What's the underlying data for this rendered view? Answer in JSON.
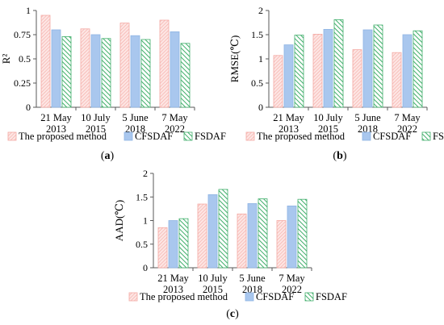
{
  "chart_data": [
    {
      "id": "a",
      "panel_label": "(a)",
      "type": "bar",
      "ylabel": "R²",
      "ylim": [
        0,
        1
      ],
      "yticks": [
        0,
        0.25,
        0.5,
        0.75,
        1
      ],
      "ytick_labels": [
        "0",
        "0.25",
        "0.5",
        "0.75",
        "1"
      ],
      "categories": [
        [
          "21 May",
          "2013"
        ],
        [
          "10 July",
          "2015"
        ],
        [
          "5 June",
          "2018"
        ],
        [
          "7 May",
          "2022"
        ]
      ],
      "series": [
        {
          "name": "The proposed method",
          "values": [
            0.95,
            0.81,
            0.87,
            0.9
          ]
        },
        {
          "name": "CFSDAF",
          "values": [
            0.8,
            0.75,
            0.74,
            0.78
          ]
        },
        {
          "name": "FSDAF",
          "values": [
            0.73,
            0.71,
            0.7,
            0.66
          ]
        }
      ],
      "legend_position": "bottom"
    },
    {
      "id": "b",
      "panel_label": "(b)",
      "type": "bar",
      "ylabel": "RMSE(℃)",
      "ylim": [
        0,
        2
      ],
      "yticks": [
        0,
        0.5,
        1,
        1.5,
        2
      ],
      "ytick_labels": [
        "0",
        "0.5",
        "1",
        "1.5",
        "2"
      ],
      "categories": [
        [
          "21 May",
          "2013"
        ],
        [
          "10 July",
          "2015"
        ],
        [
          "5 June",
          "2018"
        ],
        [
          "7 May",
          "2022"
        ]
      ],
      "series": [
        {
          "name": "The proposed method",
          "values": [
            1.07,
            1.51,
            1.19,
            1.13
          ]
        },
        {
          "name": "CFSDAF",
          "values": [
            1.29,
            1.61,
            1.6,
            1.5
          ]
        },
        {
          "name": "FSDAF",
          "values": [
            1.49,
            1.81,
            1.7,
            1.58
          ]
        }
      ],
      "legend_position": "bottom"
    },
    {
      "id": "c",
      "panel_label": "(c)",
      "type": "bar",
      "ylabel": "AAD(℃)",
      "ylim": [
        0,
        2
      ],
      "yticks": [
        0,
        0.5,
        1,
        1.5,
        2
      ],
      "ytick_labels": [
        "0",
        "0.5",
        "1",
        "1.5",
        "2"
      ],
      "categories": [
        [
          "21 May",
          "2013"
        ],
        [
          "10 July",
          "2015"
        ],
        [
          "5 June",
          "2018"
        ],
        [
          "7 May",
          "2022"
        ]
      ],
      "series": [
        {
          "name": "The proposed method",
          "values": [
            0.85,
            1.35,
            1.14,
            1.0
          ]
        },
        {
          "name": "CFSDAF",
          "values": [
            1.0,
            1.55,
            1.36,
            1.31
          ]
        },
        {
          "name": "FSDAF",
          "values": [
            1.04,
            1.66,
            1.46,
            1.45
          ]
        }
      ],
      "legend_position": "bottom"
    }
  ],
  "colors": {
    "series": [
      "#f4a9a3",
      "#8fb4e3",
      "#3fae6a"
    ],
    "series_fill": [
      "#fde6e4",
      "#a9c7ee",
      "#ffffff"
    ],
    "axis": "#595959"
  }
}
